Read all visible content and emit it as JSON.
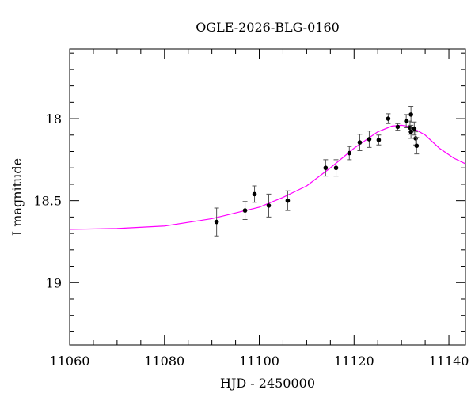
{
  "chart_data": {
    "type": "lightcurve",
    "title": "OGLE-2026-BLG-0160",
    "x_label": "HJD - 2450000",
    "y_label": "I magnitude",
    "xlim": [
      11060,
      11143.5
    ],
    "ylim": [
      19.38,
      17.575
    ],
    "inverted_y": true,
    "xticks": [
      11060,
      11080,
      11100,
      11120,
      11140
    ],
    "xminorticks": [
      11065,
      11070,
      11075,
      11085,
      11090,
      11095,
      11105,
      11110,
      11115,
      11125,
      11130,
      11135
    ],
    "yticks": [
      18,
      18.5,
      19
    ],
    "yminorticks": [
      17.6,
      17.7,
      17.8,
      17.9,
      18.1,
      18.2,
      18.3,
      18.4,
      18.6,
      18.7,
      18.8,
      18.9,
      19.1,
      19.2,
      19.3
    ],
    "series": [
      {
        "type": "line",
        "color": "#ff00ff",
        "x": [
          11060,
          11070,
          11080,
          11090,
          11100,
          11105,
          11110,
          11115,
          11120,
          11125,
          11128,
          11130,
          11132,
          11135,
          11138,
          11141,
          11143.5
        ],
        "values": [
          18.675,
          18.67,
          18.655,
          18.61,
          18.54,
          18.48,
          18.41,
          18.3,
          18.18,
          18.08,
          18.045,
          18.04,
          18.05,
          18.1,
          18.18,
          18.24,
          18.275
        ]
      },
      {
        "type": "errorbar",
        "color": "#000000",
        "x": [
          11091.0,
          11097.0,
          11099.0,
          11102.0,
          11106.0,
          11114.0,
          11116.2,
          11119.0,
          11121.2,
          11123.2,
          11125.2,
          11127.2,
          11129.2,
          11131.0,
          11132.0,
          11131.8,
          11132.0,
          11132.7,
          11133.0,
          11133.2
        ],
        "values": [
          18.63,
          18.56,
          18.46,
          18.53,
          18.5,
          18.3,
          18.3,
          18.21,
          18.145,
          18.125,
          18.13,
          18.0,
          18.05,
          18.015,
          17.975,
          18.055,
          18.08,
          18.06,
          18.12,
          18.165
        ],
        "errors": [
          0.085,
          0.055,
          0.05,
          0.07,
          0.06,
          0.05,
          0.05,
          0.04,
          0.05,
          0.05,
          0.03,
          0.03,
          0.02,
          0.04,
          0.05,
          0.04,
          0.04,
          0.04,
          0.04,
          0.05
        ]
      }
    ]
  }
}
